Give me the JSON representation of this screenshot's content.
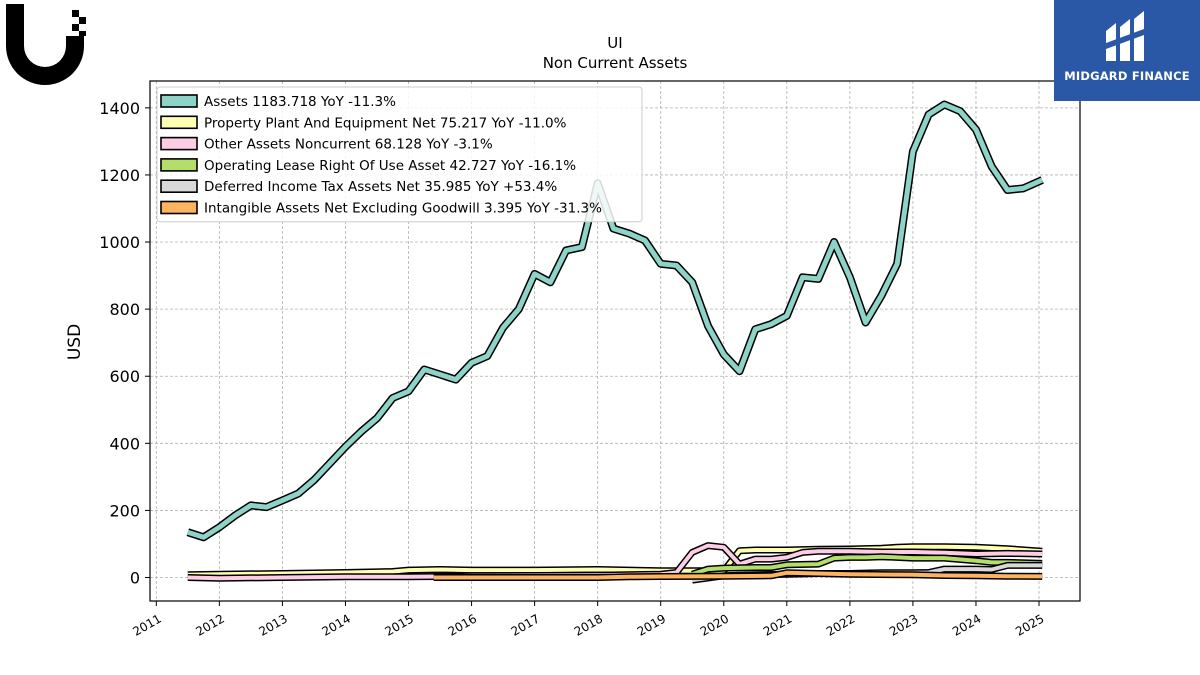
{
  "brand": {
    "name": "MIDGARD FINANCE"
  },
  "chart_data": {
    "type": "line",
    "title": "UI",
    "subtitle": "Non Current  Assets",
    "ylabel": "USD",
    "xlabel": "",
    "xlim": [
      2010.9,
      2025.65
    ],
    "ylim": [
      -70,
      1480
    ],
    "yticks": [
      0,
      200,
      400,
      600,
      800,
      1000,
      1200,
      1400
    ],
    "xticks": [
      2011,
      2012,
      2013,
      2014,
      2015,
      2016,
      2017,
      2018,
      2019,
      2020,
      2021,
      2022,
      2023,
      2024,
      2025
    ],
    "grid": true,
    "legend_position": "top-left",
    "series": [
      {
        "name": "Assets  1183.718 YoY -11.3%",
        "color": "#8dd3c7",
        "width": 5,
        "points": [
          [
            2011.5,
            135
          ],
          [
            2011.75,
            120
          ],
          [
            2012.0,
            150
          ],
          [
            2012.25,
            185
          ],
          [
            2012.5,
            215
          ],
          [
            2012.75,
            210
          ],
          [
            2013.0,
            230
          ],
          [
            2013.25,
            250
          ],
          [
            2013.5,
            290
          ],
          [
            2013.75,
            340
          ],
          [
            2014.0,
            390
          ],
          [
            2014.25,
            435
          ],
          [
            2014.5,
            475
          ],
          [
            2014.75,
            535
          ],
          [
            2015.0,
            555
          ],
          [
            2015.25,
            620
          ],
          [
            2015.5,
            605
          ],
          [
            2015.75,
            590
          ],
          [
            2016.0,
            640
          ],
          [
            2016.25,
            660
          ],
          [
            2016.5,
            745
          ],
          [
            2016.75,
            800
          ],
          [
            2017.0,
            905
          ],
          [
            2017.25,
            880
          ],
          [
            2017.5,
            975
          ],
          [
            2017.75,
            985
          ],
          [
            2018.0,
            1175
          ],
          [
            2018.25,
            1040
          ],
          [
            2018.5,
            1025
          ],
          [
            2018.75,
            1005
          ],
          [
            2019.0,
            935
          ],
          [
            2019.25,
            930
          ],
          [
            2019.5,
            880
          ],
          [
            2019.75,
            750
          ],
          [
            2020.0,
            665
          ],
          [
            2020.25,
            615
          ],
          [
            2020.5,
            740
          ],
          [
            2020.75,
            755
          ],
          [
            2021.0,
            780
          ],
          [
            2021.25,
            895
          ],
          [
            2021.5,
            890
          ],
          [
            2021.75,
            1000
          ],
          [
            2022.0,
            895
          ],
          [
            2022.25,
            760
          ],
          [
            2022.5,
            840
          ],
          [
            2022.75,
            935
          ],
          [
            2023.0,
            1270
          ],
          [
            2023.25,
            1380
          ],
          [
            2023.5,
            1410
          ],
          [
            2023.75,
            1390
          ],
          [
            2024.0,
            1335
          ],
          [
            2024.25,
            1225
          ],
          [
            2024.5,
            1155
          ],
          [
            2024.75,
            1160
          ],
          [
            2025.05,
            1185
          ]
        ]
      },
      {
        "name": "Property Plant And Equipment Net  75.217 YoY -11.0%",
        "color": "#ffffb3",
        "width": 4,
        "points": [
          [
            2011.5,
            8
          ],
          [
            2012.0,
            10
          ],
          [
            2013.0,
            12
          ],
          [
            2014.0,
            15
          ],
          [
            2014.75,
            18
          ],
          [
            2015.0,
            22
          ],
          [
            2015.5,
            24
          ],
          [
            2016.0,
            22
          ],
          [
            2017.0,
            22
          ],
          [
            2018.0,
            24
          ],
          [
            2019.0,
            20
          ],
          [
            2019.5,
            20
          ],
          [
            2020.0,
            20
          ],
          [
            2020.25,
            80
          ],
          [
            2020.5,
            82
          ],
          [
            2021.0,
            82
          ],
          [
            2021.5,
            84
          ],
          [
            2022.0,
            85
          ],
          [
            2022.5,
            87
          ],
          [
            2022.75,
            90
          ],
          [
            2023.0,
            92
          ],
          [
            2023.5,
            92
          ],
          [
            2024.0,
            90
          ],
          [
            2024.5,
            86
          ],
          [
            2025.05,
            78
          ]
        ]
      },
      {
        "name": "Other Assets Noncurrent  68.128 YoY -3.1%",
        "color": "#fccde5",
        "width": 4,
        "points": [
          [
            2011.5,
            0
          ],
          [
            2012.0,
            -2
          ],
          [
            2013.0,
            0
          ],
          [
            2014.0,
            2
          ],
          [
            2015.0,
            2
          ],
          [
            2015.5,
            3
          ],
          [
            2016.0,
            5
          ],
          [
            2017.0,
            6
          ],
          [
            2018.0,
            7
          ],
          [
            2019.0,
            10
          ],
          [
            2019.25,
            15
          ],
          [
            2019.5,
            75
          ],
          [
            2019.75,
            95
          ],
          [
            2020.0,
            90
          ],
          [
            2020.25,
            40
          ],
          [
            2020.5,
            55
          ],
          [
            2020.75,
            55
          ],
          [
            2021.0,
            60
          ],
          [
            2021.25,
            75
          ],
          [
            2021.5,
            78
          ],
          [
            2022.0,
            78
          ],
          [
            2022.5,
            76
          ],
          [
            2023.0,
            76
          ],
          [
            2023.5,
            74
          ],
          [
            2024.0,
            70
          ],
          [
            2024.5,
            72
          ],
          [
            2025.05,
            70
          ]
        ]
      },
      {
        "name": "Operating Lease Right Of Use Asset  42.727 YoY -16.1%",
        "color": "#b3de69",
        "width": 4,
        "points": [
          [
            2019.5,
            10
          ],
          [
            2019.75,
            25
          ],
          [
            2020.0,
            28
          ],
          [
            2020.5,
            30
          ],
          [
            2020.75,
            30
          ],
          [
            2021.0,
            38
          ],
          [
            2021.5,
            40
          ],
          [
            2021.75,
            58
          ],
          [
            2022.0,
            60
          ],
          [
            2022.25,
            60
          ],
          [
            2022.5,
            62
          ],
          [
            2023.0,
            58
          ],
          [
            2023.5,
            58
          ],
          [
            2024.0,
            50
          ],
          [
            2024.25,
            45
          ],
          [
            2024.5,
            45
          ],
          [
            2025.05,
            42
          ]
        ]
      },
      {
        "name": "Deferred Income Tax Assets Net  35.985 YoY +53.4%",
        "color": "#d9d9d9",
        "width": 4,
        "points": [
          [
            2019.5,
            -8
          ],
          [
            2020.0,
            5
          ],
          [
            2020.5,
            8
          ],
          [
            2021.0,
            10
          ],
          [
            2021.5,
            12
          ],
          [
            2022.0,
            12
          ],
          [
            2022.5,
            14
          ],
          [
            2023.0,
            14
          ],
          [
            2023.25,
            15
          ],
          [
            2023.5,
            25
          ],
          [
            2024.0,
            25
          ],
          [
            2024.25,
            24
          ],
          [
            2024.5,
            36
          ],
          [
            2025.05,
            36
          ]
        ]
      },
      {
        "name": "Intangible Assets Net Excluding Goodwill  3.395 YoY -31.3%",
        "color": "#fdb462",
        "width": 4,
        "points": [
          [
            2015.4,
            0
          ],
          [
            2016.0,
            0
          ],
          [
            2017.0,
            0
          ],
          [
            2018.0,
            0
          ],
          [
            2018.5,
            2
          ],
          [
            2019.0,
            3
          ],
          [
            2020.0,
            4
          ],
          [
            2020.75,
            5
          ],
          [
            2021.0,
            14
          ],
          [
            2021.5,
            12
          ],
          [
            2022.0,
            10
          ],
          [
            2023.0,
            8
          ],
          [
            2023.5,
            6
          ],
          [
            2024.0,
            5
          ],
          [
            2024.5,
            4
          ],
          [
            2025.05,
            3.4
          ]
        ]
      }
    ]
  }
}
